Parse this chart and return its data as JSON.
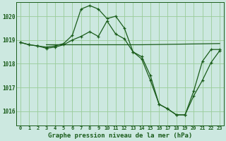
{
  "background_color": "#cce8e0",
  "grid_color": "#99cc99",
  "line_color": "#1a5c1a",
  "title": "Graphe pression niveau de la mer (hPa)",
  "xlim": [
    -0.5,
    23.5
  ],
  "ylim": [
    1015.4,
    1020.6
  ],
  "yticks": [
    1016,
    1017,
    1018,
    1019,
    1020
  ],
  "xticks": [
    0,
    1,
    2,
    3,
    4,
    5,
    6,
    7,
    8,
    9,
    10,
    11,
    12,
    13,
    14,
    15,
    16,
    17,
    18,
    19,
    20,
    21,
    22,
    23
  ],
  "lines": [
    {
      "x": [
        3,
        14,
        23
      ],
      "y": [
        1018.8,
        1018.8,
        1018.85
      ],
      "has_markers": false
    },
    {
      "x": [
        0,
        1,
        2,
        3,
        4,
        5,
        6,
        7,
        8,
        9,
        10,
        11,
        12,
        13,
        14,
        15,
        16,
        17,
        18,
        19,
        20,
        21,
        22,
        23
      ],
      "y": [
        1018.9,
        1018.8,
        1018.75,
        1018.7,
        1018.75,
        1018.85,
        1019.2,
        1020.3,
        1020.45,
        1020.3,
        1019.9,
        1020.0,
        1019.5,
        1018.5,
        1018.3,
        1017.5,
        1016.3,
        1016.1,
        1015.85,
        1015.85,
        1016.85,
        1018.1,
        1018.6,
        1018.6
      ],
      "has_markers": true
    },
    {
      "x": [
        0,
        1,
        2,
        3,
        4,
        5,
        6,
        7,
        8,
        9,
        10,
        11,
        12,
        13,
        14,
        15,
        16,
        17,
        18,
        19,
        20,
        21,
        22,
        23
      ],
      "y": [
        1018.9,
        1018.8,
        1018.75,
        1018.65,
        1018.7,
        1018.8,
        1019.0,
        1019.15,
        1019.35,
        1019.15,
        1019.8,
        1019.25,
        1019.05,
        1018.5,
        1018.2,
        1017.3,
        1016.3,
        1016.1,
        1015.85,
        1015.85,
        1016.65,
        1017.3,
        1018.05,
        1018.55
      ],
      "has_markers": true
    }
  ]
}
